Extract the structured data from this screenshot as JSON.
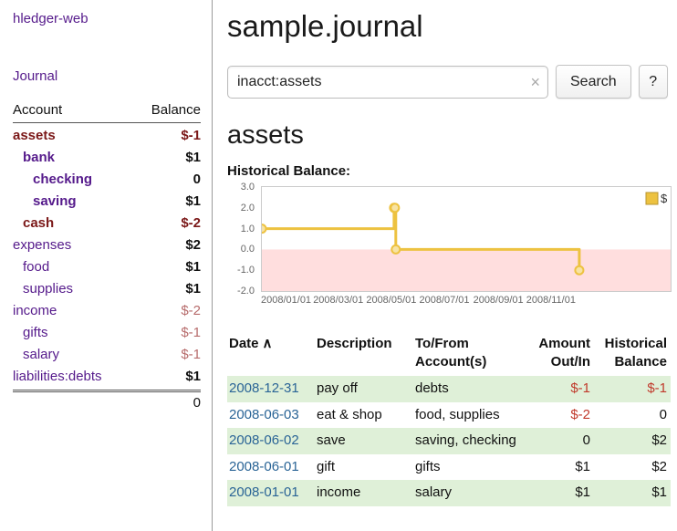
{
  "sidebar": {
    "app_title": "hledger-web",
    "journal_link": "Journal",
    "columns": {
      "account": "Account",
      "balance": "Balance"
    },
    "accounts": [
      {
        "name": "assets",
        "balance": "$-1"
      },
      {
        "name": "bank",
        "balance": "$1"
      },
      {
        "name": "checking",
        "balance": "0"
      },
      {
        "name": "saving",
        "balance": "$1"
      },
      {
        "name": "cash",
        "balance": "$-2"
      },
      {
        "name": "expenses",
        "balance": "$2"
      },
      {
        "name": "food",
        "balance": "$1"
      },
      {
        "name": "supplies",
        "balance": "$1"
      },
      {
        "name": "income",
        "balance": "$-2"
      },
      {
        "name": "gifts",
        "balance": "$-1"
      },
      {
        "name": "salary",
        "balance": "$-1"
      },
      {
        "name": "liabilities:debts",
        "balance": "$1"
      }
    ],
    "total_balance": "0"
  },
  "main": {
    "title": "sample.journal",
    "search": {
      "value": "inacct:assets",
      "clear_icon": "×",
      "button_label": "Search",
      "help_label": "?"
    },
    "account_heading": "assets"
  },
  "chart": {
    "type": "line",
    "title": "Historical Balance:",
    "legend": "$",
    "ylim": [
      -2.0,
      3.0
    ],
    "yticks": [
      3.0,
      2.0,
      1.0,
      0.0,
      -1.0,
      -2.0
    ],
    "xticks": [
      "2008/01/01",
      "2008/03/01",
      "2008/05/01",
      "2008/07/01",
      "2008/09/01",
      "2008/11/01"
    ],
    "xdomain": [
      "2008-01-01",
      "2009-04-15"
    ],
    "series": [
      {
        "name": "$",
        "step": true,
        "points": [
          [
            "2008-01-01",
            1
          ],
          [
            "2008-06-01",
            2
          ],
          [
            "2008-06-02",
            2
          ],
          [
            "2008-06-03",
            0
          ],
          [
            "2008-12-31",
            -1
          ]
        ]
      }
    ],
    "colors": {
      "line": "#edc240",
      "marker_fill": "#f7e3a4",
      "negative_region": "#ffdede",
      "legend_border": "#b89530"
    }
  },
  "register": {
    "headers": {
      "date": "Date",
      "sort_icon": "∧",
      "description": "Description",
      "accounts": "To/From Account(s)",
      "amount": "Amount Out/In",
      "balance": "Historical Balance"
    },
    "rows": [
      {
        "date": "2008-12-31",
        "description": "pay off",
        "accounts": "debts",
        "amount": "$-1",
        "balance": "$-1"
      },
      {
        "date": "2008-06-03",
        "description": "eat & shop",
        "accounts": "food, supplies",
        "amount": "$-2",
        "balance": "0"
      },
      {
        "date": "2008-06-02",
        "description": "save",
        "accounts": "saving, checking",
        "amount": "0",
        "balance": "$2"
      },
      {
        "date": "2008-06-01",
        "description": "gift",
        "accounts": "gifts",
        "amount": "$1",
        "balance": "$2"
      },
      {
        "date": "2008-01-01",
        "description": "income",
        "accounts": "salary",
        "amount": "$1",
        "balance": "$1"
      }
    ]
  },
  "colors": {
    "link_purple": "#551a8b",
    "link_blue": "#2a6496",
    "negative": "#c0392b",
    "negative_dark": "#7b1818",
    "negative_muted": "#b76c6c",
    "row_shade_green": "#dff0d8",
    "chart_series_yellow": "#edc240"
  }
}
